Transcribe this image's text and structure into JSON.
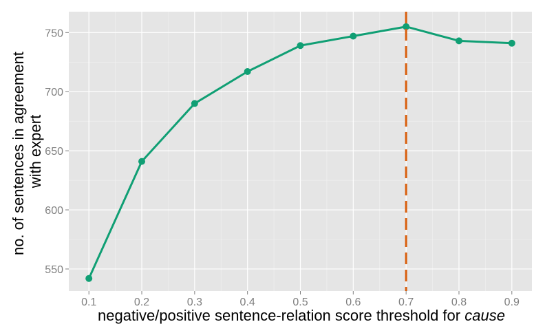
{
  "chart_data": {
    "type": "line",
    "xlabel_main": "negative/positive sentence-relation score threshold for",
    "xlabel_italic": "cause",
    "ylabel_line1": "no. of sentences in agreement",
    "ylabel_line2": "with expert",
    "x": [
      0.1,
      0.2,
      0.3,
      0.4,
      0.5,
      0.6,
      0.7,
      0.8,
      0.9
    ],
    "y": [
      542,
      641,
      690,
      717,
      739,
      747,
      755,
      743,
      741
    ],
    "x_tick_labels": [
      "0.1",
      "0.2",
      "0.3",
      "0.4",
      "0.5",
      "0.6",
      "0.7",
      "0.8",
      "0.9"
    ],
    "y_ticks": [
      550,
      600,
      650,
      700,
      750
    ],
    "y_tick_labels": [
      "550",
      "600",
      "650",
      "700",
      "750"
    ],
    "xlim": [
      0.062,
      0.938
    ],
    "ylim": [
      531.35,
      767.65
    ],
    "threshold_x": 0.7,
    "grid": true,
    "colors": {
      "line": "#109f74",
      "threshold": "#d95f0e",
      "panel": "#e5e5e5",
      "grid": "#ffffff"
    }
  }
}
